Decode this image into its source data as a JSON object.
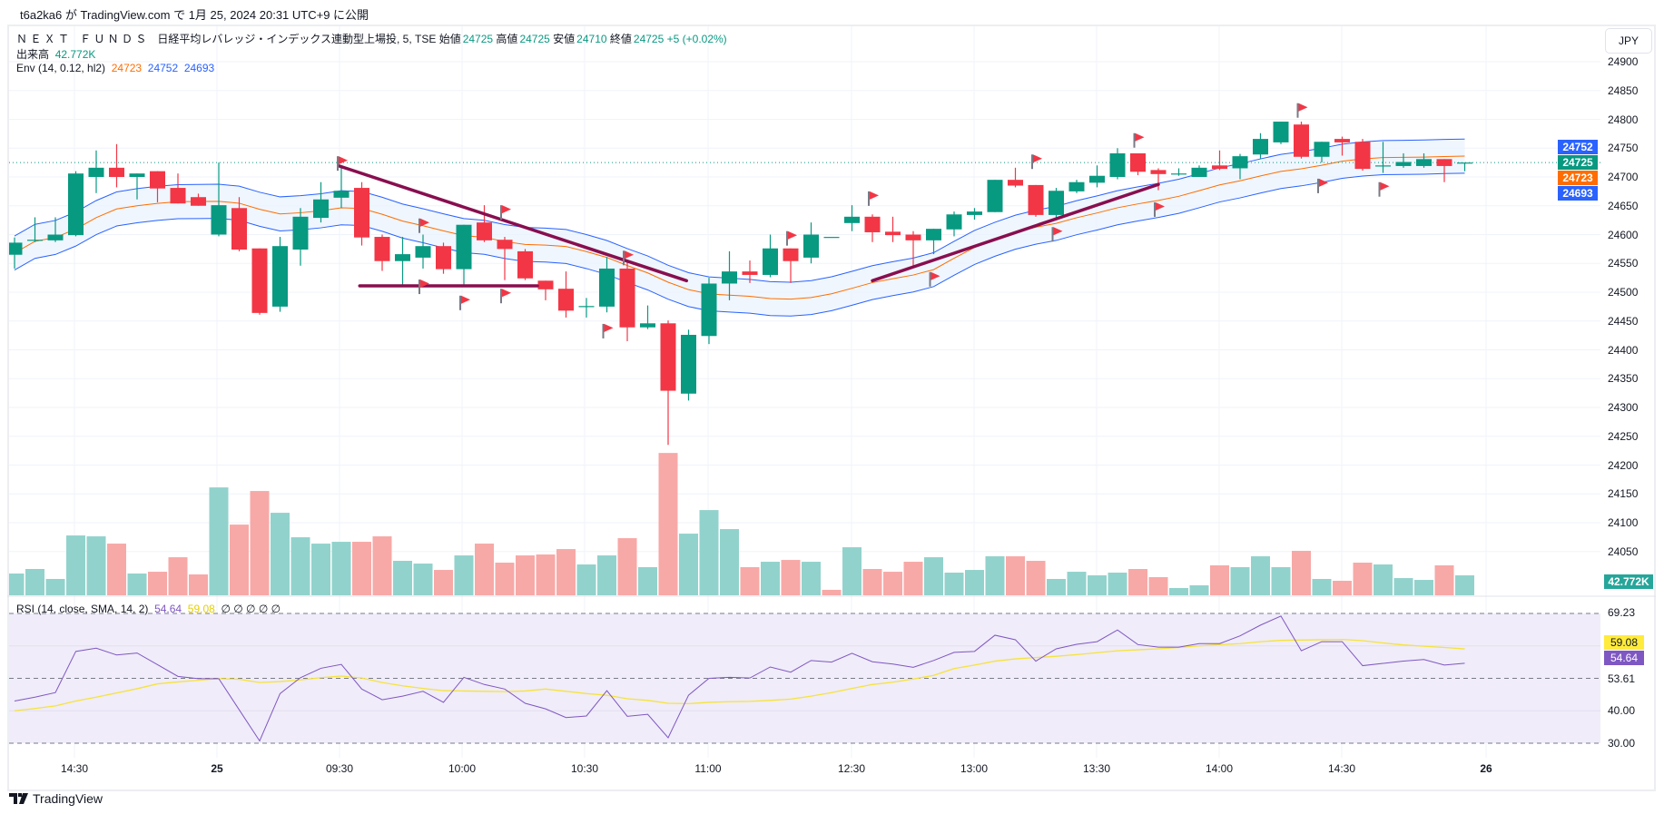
{
  "publish_line": "t6a2ka6 が TradingView.com で 1月 25, 2024 20:31 UTC+9 に公開",
  "legend": {
    "symbol": "Ｎ Ｅ Ｘ Ｔ　Ｆ Ｕ Ｎ Ｄ Ｓ　日経平均レバレッジ・インデックス連動型上場投, 5, TSE",
    "open_label": "始値",
    "open": "24725",
    "high_label": "高値",
    "high": "24725",
    "low_label": "安値",
    "low": "24710",
    "close_label": "終値",
    "close": "24725",
    "change": "+5 (+0.02%)",
    "volume_label": "出来高",
    "volume": "42.772K",
    "env_label": "Env (14, 0.12, hl2)",
    "env_basis": "24723",
    "env_upper": "24752",
    "env_lower": "24693"
  },
  "rsi_legend": {
    "label": "RSI (14, close, SMA, 14, 2)",
    "rsi": "54.64",
    "sma": "59.08",
    "na_marks": "∅ ∅ ∅ ∅ ∅"
  },
  "currency": "JPY",
  "price_axis": [
    "24900",
    "24850",
    "24800",
    "24750",
    "24700",
    "24650",
    "24600",
    "24550",
    "24500",
    "24450",
    "24400",
    "24350",
    "24300",
    "24250",
    "24200",
    "24150",
    "24100",
    "24050"
  ],
  "price_badges": [
    {
      "value": "24752",
      "color": "#2962ff"
    },
    {
      "value": "24725",
      "color": "#089981"
    },
    {
      "value": "24723",
      "color": "#ff6d00"
    },
    {
      "value": "24693",
      "color": "#2962ff"
    }
  ],
  "volume_badge": {
    "value": "42.772K",
    "color": "#26a69a"
  },
  "rsi_axis": [
    "69.23",
    "59.08",
    "54.64",
    "53.61",
    "40.00",
    "30.00"
  ],
  "time_axis": [
    "14:30",
    "25",
    "09:30",
    "10:00",
    "10:30",
    "11:00",
    "12:30",
    "13:00",
    "13:30",
    "14:00",
    "14:30",
    "26"
  ],
  "logo": "TradingView",
  "colors": {
    "up": "#089981",
    "down": "#f23645",
    "vol_up": "#92d2cc",
    "vol_down": "#f7a9a7",
    "env_band": "#2962ff",
    "env_basis": "#ff6d00",
    "rsi": "#7e57c2",
    "rsi_sma": "#f5e33b",
    "drawing": "#880e4f",
    "flag": "#f23645"
  },
  "chart_data": {
    "type": "candlestick",
    "interval": "5",
    "price_range": [
      24000,
      24900
    ],
    "last_price": 24725,
    "candles_ohlc": [
      [
        24565,
        24595,
        24541,
        24586
      ],
      [
        24591,
        24630,
        24587,
        24591
      ],
      [
        24590,
        24630,
        24587,
        24600
      ],
      [
        24599,
        24710,
        24597,
        24706
      ],
      [
        24700,
        24746,
        24672,
        24716
      ],
      [
        24716,
        24757,
        24682,
        24700
      ],
      [
        24700,
        24706,
        24661,
        24706
      ],
      [
        24710,
        24710,
        24656,
        24680
      ],
      [
        24681,
        24706,
        24654,
        24654
      ],
      [
        24665,
        24671,
        24650,
        24650
      ],
      [
        24600,
        24725,
        24597,
        24651
      ],
      [
        24646,
        24665,
        24571,
        24574
      ],
      [
        24576,
        24576,
        24461,
        24464
      ],
      [
        24475,
        24596,
        24466,
        24580
      ],
      [
        24574,
        24646,
        24546,
        24631
      ],
      [
        24629,
        24691,
        24621,
        24661
      ],
      [
        24664,
        24718,
        24646,
        24676
      ],
      [
        24681,
        24691,
        24581,
        24595
      ],
      [
        24596,
        24600,
        24537,
        24554
      ],
      [
        24554,
        24596,
        24511,
        24566
      ],
      [
        24560,
        24600,
        24541,
        24580
      ],
      [
        24580,
        24586,
        24532,
        24540
      ],
      [
        24540,
        24617,
        24511,
        24617
      ],
      [
        24621,
        24651,
        24587,
        24590
      ],
      [
        24591,
        24596,
        24521,
        24575
      ],
      [
        24571,
        24575,
        24521,
        24524
      ],
      [
        24520,
        24520,
        24486,
        24505
      ],
      [
        24506,
        24536,
        24456,
        24468
      ],
      [
        24476,
        24490,
        24456,
        24476
      ],
      [
        24475,
        24561,
        24465,
        24541
      ],
      [
        24541,
        24556,
        24415,
        24439
      ],
      [
        24439,
        24477,
        24436,
        24446
      ],
      [
        24446,
        24451,
        24235,
        24329
      ],
      [
        24324,
        24435,
        24312,
        24426
      ],
      [
        24424,
        24525,
        24410,
        24515
      ],
      [
        24515,
        24571,
        24486,
        24536
      ],
      [
        24536,
        24555,
        24516,
        24530
      ],
      [
        24530,
        24600,
        24526,
        24576
      ],
      [
        24576,
        24576,
        24516,
        24554
      ],
      [
        24560,
        24621,
        24550,
        24600
      ],
      [
        24596,
        24596,
        24596,
        24596
      ],
      [
        24620,
        24651,
        24606,
        24631
      ],
      [
        24631,
        24635,
        24587,
        24604
      ],
      [
        24605,
        24631,
        24587,
        24599
      ],
      [
        24600,
        24606,
        24542,
        24590
      ],
      [
        24590,
        24610,
        24566,
        24610
      ],
      [
        24609,
        24640,
        24597,
        24635
      ],
      [
        24634,
        24646,
        24626,
        24640
      ],
      [
        24639,
        24695,
        24639,
        24695
      ],
      [
        24695,
        24716,
        24682,
        24685
      ],
      [
        24686,
        24686,
        24631,
        24634
      ],
      [
        24634,
        24681,
        24629,
        24676
      ],
      [
        24675,
        24695,
        24672,
        24691
      ],
      [
        24690,
        24720,
        24682,
        24702
      ],
      [
        24700,
        24750,
        24696,
        24741
      ],
      [
        24741,
        24741,
        24703,
        24709
      ],
      [
        24712,
        24715,
        24677,
        24705
      ],
      [
        24706,
        24715,
        24702,
        24706
      ],
      [
        24700,
        24720,
        24700,
        24716
      ],
      [
        24720,
        24746,
        24712,
        24714
      ],
      [
        24715,
        24740,
        24696,
        24736
      ],
      [
        24739,
        24776,
        24732,
        24766
      ],
      [
        24760,
        24796,
        24757,
        24796
      ],
      [
        24791,
        24796,
        24732,
        24735
      ],
      [
        24735,
        24761,
        24725,
        24761
      ],
      [
        24766,
        24770,
        24737,
        24760
      ],
      [
        24761,
        24766,
        24711,
        24714
      ],
      [
        24719,
        24761,
        24707,
        24720
      ],
      [
        24719,
        24741,
        24716,
        24726
      ],
      [
        24719,
        24741,
        24716,
        24731
      ],
      [
        24731,
        24731,
        24691,
        24719
      ],
      [
        24725,
        24725,
        24710,
        24725
      ]
    ],
    "volume_k": [
      46.7,
      56.4,
      35,
      128.3,
      126.4,
      110.8,
      46.7,
      50.5,
      81.6,
      44.7,
      231.3,
      151.6,
      223.6,
      176.9,
      124.4,
      110.8,
      114.7,
      114.7,
      126.4,
      73.9,
      68,
      54.4,
      85.5,
      110.8,
      70,
      85.5,
      87.5,
      99.1,
      66.1,
      85.5,
      122.5,
      60.3,
      305.2,
      132.2,
      182.7,
      141.9,
      60.3,
      71.9,
      75.8,
      71.9,
      11.7,
      103,
      56.4,
      50.5,
      71.9,
      81.6,
      48.6,
      54.4,
      83.6,
      83.6,
      73.9,
      35,
      50.5,
      42.8,
      48.6,
      56.4,
      38.9,
      15.6,
      21.4,
      64.2,
      60.3,
      83.6,
      60.3,
      95.3,
      35,
      31.1,
      70,
      66.1,
      36.9,
      33,
      64.2,
      42.772
    ],
    "envelope": {
      "length": 14,
      "percent": 0.12,
      "source": "hl2"
    },
    "rsi": [
      43.0,
      44.2,
      45.6,
      58.3,
      59.3,
      57.2,
      57.8,
      54.2,
      50.6,
      49.9,
      49.9,
      40.3,
      30.7,
      45.3,
      50.2,
      53.1,
      54.3,
      46.7,
      43.4,
      44.5,
      46.0,
      42.6,
      50.3,
      48.1,
      46.7,
      42.3,
      40.6,
      37.9,
      38.4,
      46.2,
      38.3,
      38.9,
      31.7,
      44.8,
      50.0,
      50.3,
      50.1,
      53.5,
      51.9,
      55.5,
      55.0,
      57.7,
      55.1,
      54.4,
      53.4,
      55.5,
      58.0,
      58.3,
      63.3,
      61.9,
      55.3,
      59.1,
      60.5,
      61.3,
      64.9,
      60.4,
      59.6,
      59.6,
      60.7,
      60.7,
      63.1,
      66.4,
      69.2,
      58.5,
      61.3,
      61.3,
      53.9,
      54.6,
      55.3,
      55.8,
      54.1,
      54.64
    ],
    "rsi_sma": [
      40.0,
      40.7,
      41.5,
      43.0,
      44.2,
      45.5,
      46.8,
      48.3,
      48.9,
      49.4,
      49.9,
      49.7,
      48.7,
      49.0,
      49.5,
      50.2,
      50.7,
      50.1,
      48.7,
      47.7,
      46.9,
      46.2,
      46.1,
      46.0,
      45.9,
      46.1,
      46.7,
      46.0,
      45.3,
      44.8,
      43.7,
      43.2,
      42.3,
      42.2,
      42.6,
      42.8,
      42.9,
      43.2,
      43.6,
      44.5,
      45.6,
      46.9,
      48.1,
      48.8,
      49.8,
      50.9,
      53.0,
      54.1,
      55.3,
      56.0,
      56.4,
      56.8,
      57.3,
      57.9,
      58.5,
      58.8,
      59.1,
      59.5,
      60.0,
      60.4,
      60.7,
      61.3,
      61.7,
      61.8,
      61.9,
      62.0,
      61.6,
      60.9,
      60.3,
      59.9,
      59.5,
      59.08
    ],
    "rsi_bands": [
      70,
      50,
      30
    ],
    "trendlines": [
      {
        "from": [
          15.9,
          24719
        ],
        "to": [
          32.9,
          24520
        ]
      },
      {
        "from": [
          16.9,
          24511
        ],
        "to": [
          25.6,
          24511
        ]
      },
      {
        "from": [
          42.0,
          24520
        ],
        "to": [
          56.0,
          24687
        ]
      }
    ],
    "flags": [
      [
        16,
        24736
      ],
      [
        20,
        24628
      ],
      [
        20,
        24522
      ],
      [
        22,
        24494
      ],
      [
        24,
        24651
      ],
      [
        24,
        24506
      ],
      [
        30,
        24572
      ],
      [
        29,
        24445
      ],
      [
        38,
        24606
      ],
      [
        42,
        24675
      ],
      [
        45,
        24535
      ],
      [
        50,
        24739
      ],
      [
        51,
        24613
      ],
      [
        55,
        24776
      ],
      [
        56,
        24656
      ],
      [
        63,
        24828
      ],
      [
        64,
        24697
      ],
      [
        67,
        24691
      ]
    ]
  }
}
